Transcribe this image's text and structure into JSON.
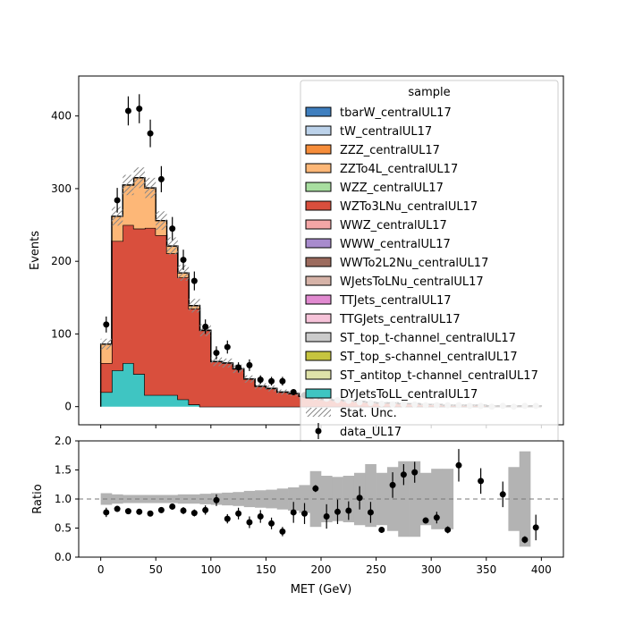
{
  "chart_data": {
    "type": "stacked-step-histogram-with-ratio",
    "main": {
      "ylabel": "Events",
      "ylim": [
        -25,
        455
      ],
      "yticks": [
        0,
        100,
        200,
        300,
        400
      ],
      "xlim": [
        -20,
        420
      ],
      "bin_edges": [
        0,
        10,
        20,
        30,
        40,
        50,
        60,
        70,
        80,
        90,
        100,
        110,
        120,
        130,
        140,
        150,
        160,
        170,
        180,
        190,
        200,
        210,
        220,
        230,
        240,
        250,
        260,
        270,
        280,
        290,
        300,
        310,
        320,
        330,
        340,
        350,
        360,
        370,
        380,
        390,
        400
      ],
      "series": [
        {
          "name": "DYJetsToLL_centralUL17",
          "color": "#3fc5c2",
          "values": [
            20,
            50,
            60,
            45,
            16,
            16,
            16,
            10,
            3,
            0,
            0,
            0,
            0,
            0,
            0,
            0,
            0,
            0,
            0,
            0,
            0,
            0,
            0,
            0,
            0,
            0,
            0,
            0,
            0,
            0,
            0,
            0,
            0,
            0,
            0,
            0,
            0,
            0,
            0,
            0
          ]
        },
        {
          "name": "WZTo3LNu_centralUL17",
          "color": "#d94f3d",
          "values": [
            40,
            178,
            190,
            200,
            230,
            220,
            195,
            168,
            132,
            105,
            62,
            60,
            52,
            38,
            28,
            25,
            20,
            18,
            14,
            11,
            10,
            9,
            8,
            7,
            6,
            5,
            5,
            4,
            4,
            3,
            3,
            2,
            2,
            2,
            2,
            1,
            1,
            1,
            1,
            1
          ]
        },
        {
          "name": "ZZTo4L_centralUL17",
          "color": "#fdb777",
          "values": [
            26,
            34,
            55,
            70,
            55,
            20,
            10,
            6,
            4,
            0,
            0,
            0,
            0,
            0,
            0,
            0,
            0,
            0,
            0,
            0,
            0,
            0,
            0,
            0,
            0,
            0,
            0,
            0,
            0,
            0,
            0,
            0,
            0,
            0,
            0,
            0,
            0,
            0,
            0,
            0
          ]
        }
      ],
      "other_series": [
        {
          "name": "tbarW_centralUL17",
          "color": "#3f7fbf"
        },
        {
          "name": "tW_centralUL17",
          "color": "#bcd2ea"
        },
        {
          "name": "ZZZ_centralUL17",
          "color": "#f68d3a"
        },
        {
          "name": "WZZ_centralUL17",
          "color": "#a8dea0"
        },
        {
          "name": "WWZ_centralUL17",
          "color": "#f4a6a6"
        },
        {
          "name": "WWW_centralUL17",
          "color": "#a88bcd"
        },
        {
          "name": "WWTo2L2Nu_centralUL17",
          "color": "#9c6b5e"
        },
        {
          "name": "WJetsToLNu_centralUL17",
          "color": "#d6b3a8"
        },
        {
          "name": "TTJets_centralUL17",
          "color": "#e18ad0"
        },
        {
          "name": "TTGJets_centralUL17",
          "color": "#f6c3d9"
        },
        {
          "name": "ST_top_t-channel_centralUL17",
          "color": "#cbcbcb"
        },
        {
          "name": "ST_top_s-channel_centralUL17",
          "color": "#c6c43f"
        },
        {
          "name": "ST_antitop_t-channel_centralUL17",
          "color": "#dfe2a9"
        }
      ],
      "legend_order": [
        "tbarW_centralUL17",
        "tW_centralUL17",
        "ZZZ_centralUL17",
        "ZZTo4L_centralUL17",
        "WZZ_centralUL17",
        "WZTo3LNu_centralUL17",
        "WWZ_centralUL17",
        "WWW_centralUL17",
        "WWTo2L2Nu_centralUL17",
        "WJetsToLNu_centralUL17",
        "TTJets_centralUL17",
        "TTGJets_centralUL17",
        "ST_top_t-channel_centralUL17",
        "ST_top_s-channel_centralUL17",
        "ST_antitop_t-channel_centralUL17",
        "DYJetsToLL_centralUL17"
      ],
      "stat_unc_label": "Stat. Unc.",
      "data": {
        "name": "data_UL17",
        "x": [
          5,
          15,
          25,
          35,
          45,
          55,
          65,
          75,
          85,
          95,
          105,
          115,
          125,
          135,
          145,
          155,
          165,
          175,
          185,
          195,
          205,
          215,
          225,
          235,
          245,
          255,
          265,
          275,
          285,
          295,
          305,
          315,
          325,
          335,
          345,
          355,
          365,
          375,
          385,
          395
        ],
        "y": [
          113,
          284,
          407,
          410,
          376,
          313,
          245,
          202,
          173,
          110,
          74,
          82,
          54,
          57,
          37,
          35,
          35,
          20,
          16,
          14,
          11,
          9,
          8,
          6,
          5,
          4,
          3,
          3,
          3,
          2,
          2,
          2,
          2,
          1,
          1,
          0,
          1,
          0,
          1,
          1
        ],
        "err": [
          11,
          17,
          20,
          20,
          19,
          18,
          16,
          14,
          13,
          10,
          9,
          9,
          7,
          8,
          6,
          6,
          6,
          4,
          4,
          4,
          3,
          3,
          3,
          2,
          2,
          2,
          2,
          2,
          2,
          1,
          1,
          1,
          1,
          1,
          1,
          1,
          1,
          1,
          1,
          1
        ]
      },
      "legend": {
        "title": "sample",
        "placement": "upper right"
      }
    },
    "ratio": {
      "ylabel": "Ratio",
      "ylim": [
        0.0,
        2.0
      ],
      "yticks": [
        "0.0",
        "0.5",
        "1.0",
        "1.5",
        "2.0"
      ],
      "reference_line": 1.0,
      "unc_low": [
        0.9,
        0.92,
        0.93,
        0.93,
        0.93,
        0.93,
        0.93,
        0.92,
        0.92,
        0.91,
        0.9,
        0.89,
        0.88,
        0.86,
        0.85,
        0.84,
        0.82,
        0.8,
        0.76,
        0.52,
        0.6,
        0.62,
        0.6,
        0.55,
        0.52,
        0.55,
        0.45,
        0.35,
        0.35,
        0.55,
        0.48,
        0.48,
        null,
        null,
        null,
        null,
        null,
        0.45,
        0.18,
        null
      ],
      "unc_high": [
        1.1,
        1.08,
        1.07,
        1.07,
        1.07,
        1.07,
        1.07,
        1.08,
        1.08,
        1.09,
        1.1,
        1.11,
        1.12,
        1.14,
        1.15,
        1.16,
        1.18,
        1.2,
        1.24,
        1.48,
        1.4,
        1.38,
        1.4,
        1.45,
        1.6,
        1.45,
        1.55,
        1.65,
        1.65,
        1.45,
        1.52,
        1.52,
        null,
        null,
        null,
        null,
        null,
        1.55,
        1.82,
        null
      ],
      "points": {
        "x": [
          5,
          15,
          25,
          35,
          45,
          55,
          65,
          75,
          85,
          95,
          105,
          115,
          125,
          135,
          145,
          155,
          165,
          175,
          185,
          195,
          205,
          215,
          225,
          235,
          245,
          255,
          265,
          275,
          285,
          295,
          305,
          315,
          325,
          345,
          365,
          385,
          395
        ],
        "y": [
          0.77,
          0.83,
          0.79,
          0.78,
          0.75,
          0.81,
          0.87,
          0.8,
          0.76,
          0.81,
          0.98,
          0.66,
          0.75,
          0.6,
          0.7,
          0.58,
          0.44,
          0.77,
          0.75,
          1.18,
          0.7,
          0.78,
          0.8,
          1.02,
          0.77,
          0.47,
          1.24,
          1.42,
          1.46,
          0.63,
          0.68,
          0.47,
          1.58,
          1.31,
          1.08,
          0.3,
          0.51
        ],
        "err": [
          0.08,
          0.05,
          0.04,
          0.04,
          0.04,
          0.05,
          0.05,
          0.06,
          0.06,
          0.08,
          0.1,
          0.08,
          0.1,
          0.1,
          0.11,
          0.1,
          0.08,
          0.18,
          0.18,
          0.06,
          0.21,
          0.21,
          0.16,
          0.2,
          0.18,
          0.05,
          0.22,
          0.18,
          0.18,
          0.05,
          0.1,
          0.06,
          0.28,
          0.22,
          0.22,
          0.06,
          0.22
        ]
      },
      "xlabel": "MET (GeV)",
      "xticks": [
        0,
        50,
        100,
        150,
        200,
        250,
        300,
        350,
        400
      ]
    }
  }
}
